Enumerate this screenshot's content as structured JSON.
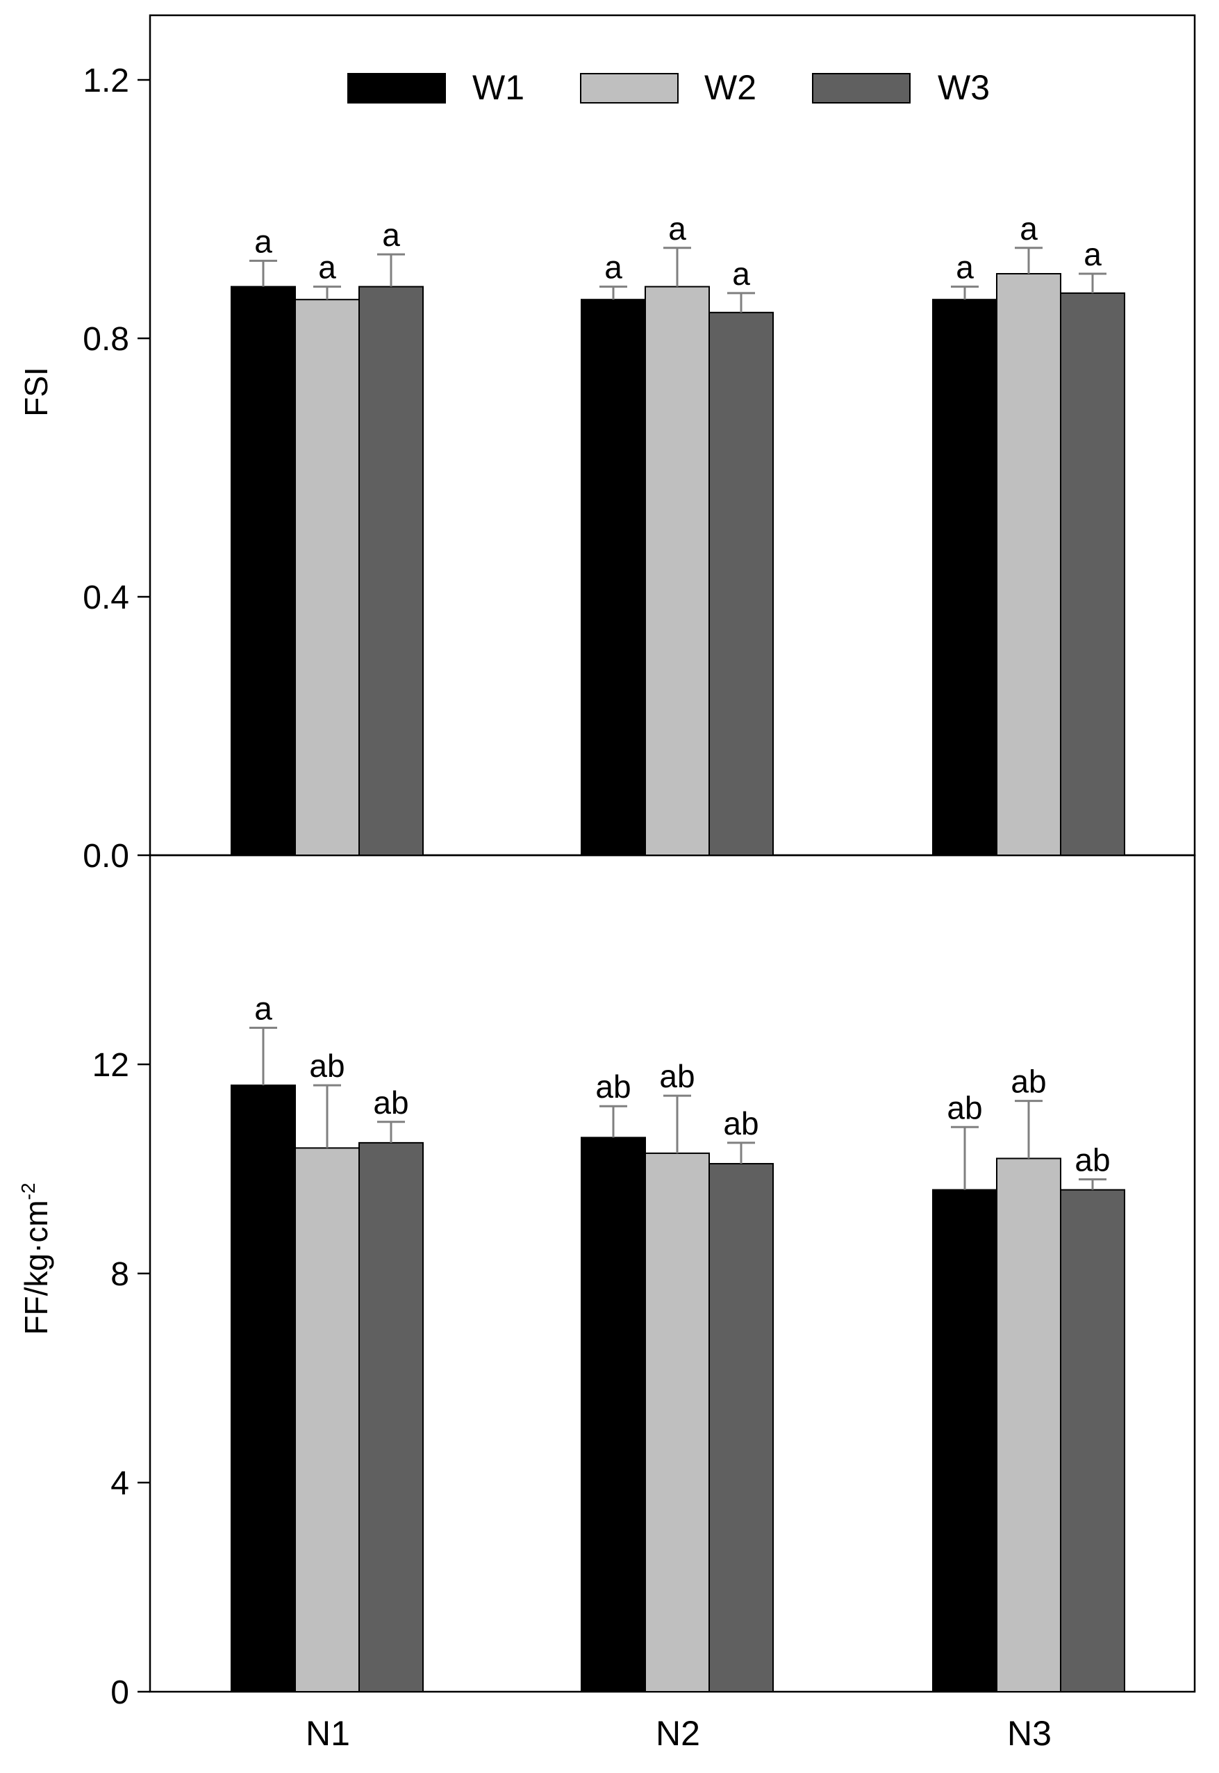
{
  "legend": {
    "items": [
      {
        "label": "W1",
        "color": "#000000"
      },
      {
        "label": "W2",
        "color": "#bfbfbf"
      },
      {
        "label": "W3",
        "color": "#606060"
      }
    ]
  },
  "x_axis": {
    "categories": [
      "N1",
      "N2",
      "N3"
    ]
  },
  "chart_data": [
    {
      "type": "bar",
      "panel": "top",
      "title": "",
      "xlabel": "",
      "ylabel": "FSI",
      "ylim": [
        0,
        1.3
      ],
      "yticks": [
        0.0,
        0.4,
        0.8,
        1.2
      ],
      "ytick_labels": [
        "0.0",
        "0.4",
        "0.8",
        "1.2"
      ],
      "categories": [
        "N1",
        "N2",
        "N3"
      ],
      "series": [
        {
          "name": "W1",
          "color": "#000000",
          "values": [
            0.88,
            0.86,
            0.86
          ],
          "errors": [
            0.04,
            0.02,
            0.02
          ],
          "letters": [
            "a",
            "a",
            "a"
          ]
        },
        {
          "name": "W2",
          "color": "#bfbfbf",
          "values": [
            0.86,
            0.88,
            0.9
          ],
          "errors": [
            0.02,
            0.06,
            0.04
          ],
          "letters": [
            "a",
            "a",
            "a"
          ]
        },
        {
          "name": "W3",
          "color": "#606060",
          "values": [
            0.88,
            0.84,
            0.87
          ],
          "errors": [
            0.05,
            0.03,
            0.03
          ],
          "letters": [
            "a",
            "a",
            "a"
          ]
        }
      ]
    },
    {
      "type": "bar",
      "panel": "bottom",
      "title": "",
      "xlabel": "",
      "ylabel": "FF/kg·cm",
      "ylabel_superscript": "-2",
      "ylim": [
        0,
        16
      ],
      "yticks": [
        0,
        4,
        8,
        12
      ],
      "ytick_labels": [
        "0",
        "4",
        "8",
        "12"
      ],
      "categories": [
        "N1",
        "N2",
        "N3"
      ],
      "series": [
        {
          "name": "W1",
          "color": "#000000",
          "values": [
            11.6,
            10.6,
            9.6
          ],
          "errors": [
            1.1,
            0.6,
            1.2
          ],
          "letters": [
            "a",
            "ab",
            "ab"
          ]
        },
        {
          "name": "W2",
          "color": "#bfbfbf",
          "values": [
            10.4,
            10.3,
            10.2
          ],
          "errors": [
            1.2,
            1.1,
            1.1
          ],
          "letters": [
            "ab",
            "ab",
            "ab"
          ]
        },
        {
          "name": "W3",
          "color": "#606060",
          "values": [
            10.5,
            10.1,
            9.6
          ],
          "errors": [
            0.4,
            0.4,
            0.2
          ],
          "letters": [
            "ab",
            "ab",
            "ab"
          ]
        }
      ]
    }
  ]
}
